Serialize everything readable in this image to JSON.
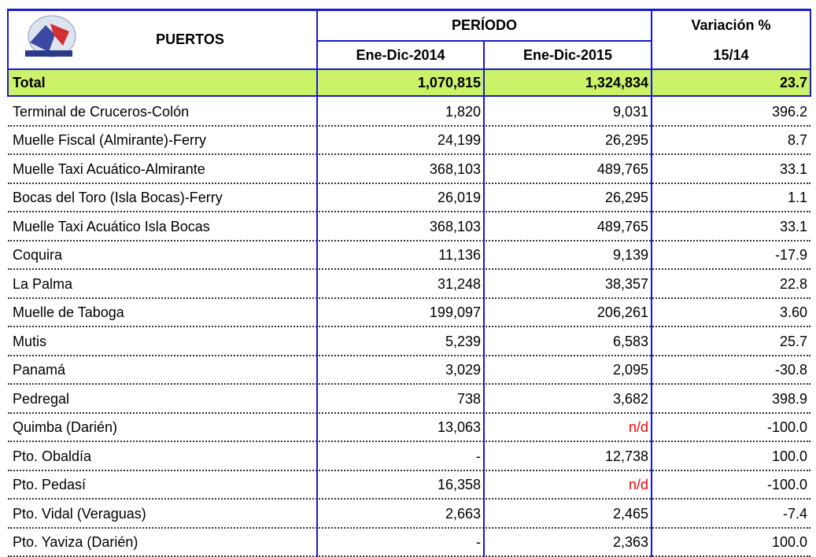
{
  "header": {
    "ports": "PUERTOS",
    "period": "PERÍODO",
    "variation": "Variación %",
    "col2014": "Ene-Dic-2014",
    "col2015": "Ene-Dic-2015",
    "ratio": "15/14"
  },
  "total": [
    "Total",
    "1,070,815",
    "1,324,834",
    "23.7"
  ],
  "table": {
    "rows": [
      [
        "Terminal de Cruceros-Colón",
        "1,820",
        "9,031",
        "396.2"
      ],
      [
        "Muelle Fiscal (Almirante)-Ferry",
        "24,199",
        "26,295",
        "8.7"
      ],
      [
        "Muelle Taxi Acuático-Almirante",
        "368,103",
        "489,765",
        "33.1"
      ],
      [
        "Bocas del Toro (Isla Bocas)-Ferry",
        "26,019",
        "26,295",
        "1.1"
      ],
      [
        "Muelle Taxi Acuático Isla Bocas",
        "368,103",
        "489,765",
        "33.1"
      ],
      [
        "Coquira",
        "11,136",
        "9,139",
        "-17.9"
      ],
      [
        "La Palma",
        "31,248",
        "38,357",
        "22.8"
      ],
      [
        "Muelle de Taboga",
        "199,097",
        "206,261",
        "3.60"
      ],
      [
        "Mutis",
        "5,239",
        "6,583",
        "25.7"
      ],
      [
        "Panamá",
        "3,029",
        "2,095",
        "-30.8"
      ],
      [
        "Pedregal",
        "738",
        "3,682",
        "398.9"
      ],
      [
        "Quimba (Darién)",
        "13,063",
        {
          "text": "n/d",
          "color": "#ff0000"
        },
        "-100.0"
      ],
      [
        "Pto. Obaldía",
        "-",
        "12,738",
        "100.0"
      ],
      [
        "Pto. Pedasí",
        "16,358",
        {
          "text": "n/d",
          "color": "#ff0000"
        },
        "-100.0"
      ],
      [
        "Pto. Vidal (Veraguas)",
        "2,663",
        "2,465",
        "-7.4"
      ],
      [
        "Pto. Yaviza (Darién)",
        "-",
        "2,363",
        "100.0"
      ]
    ]
  }
}
